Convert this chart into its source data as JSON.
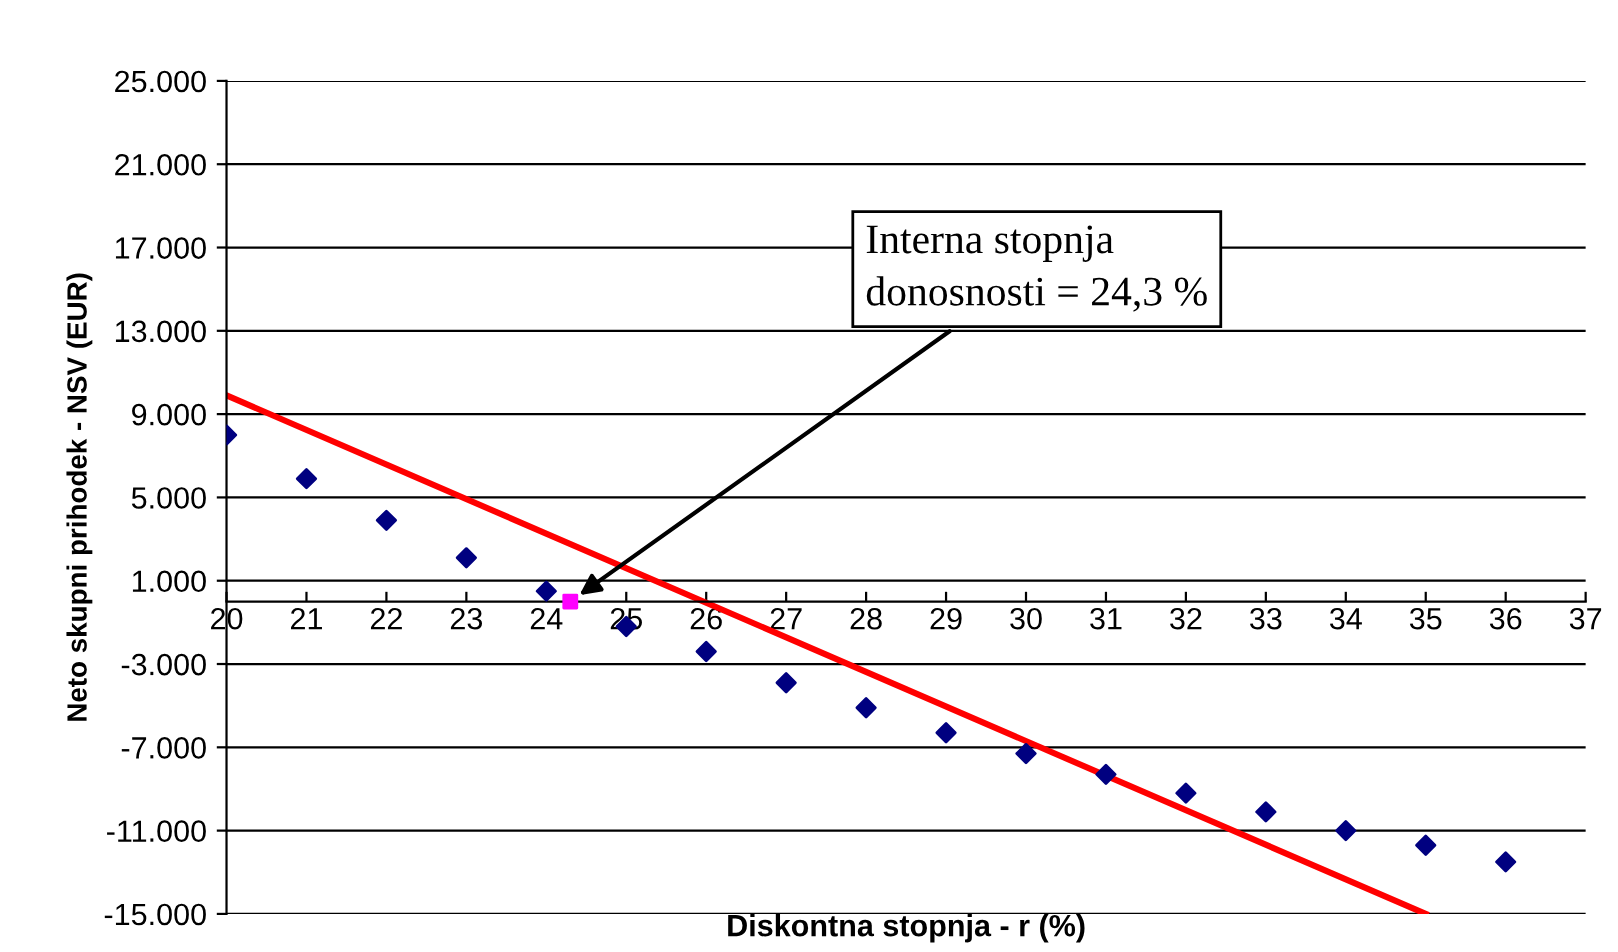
{
  "chart_data": {
    "type": "scatter",
    "xlabel": "Diskontna stopnja - r (%)",
    "ylabel": "Neto skupni prihodek - NSV (EUR)",
    "xlim": [
      20,
      37
    ],
    "xticks": [
      20,
      21,
      22,
      23,
      24,
      25,
      26,
      27,
      28,
      29,
      30,
      31,
      32,
      33,
      34,
      35,
      36,
      37
    ],
    "ylim": [
      -15000,
      25000
    ],
    "yticks": [
      {
        "value": 25000,
        "label": "25.000"
      },
      {
        "value": 21000,
        "label": "21.000"
      },
      {
        "value": 17000,
        "label": "17.000"
      },
      {
        "value": 13000,
        "label": "13.000"
      },
      {
        "value": 9000,
        "label": "9.000"
      },
      {
        "value": 5000,
        "label": "5.000"
      },
      {
        "value": 1000,
        "label": "1.000"
      },
      {
        "value": -3000,
        "label": "-3.000"
      },
      {
        "value": -7000,
        "label": "-7.000"
      },
      {
        "value": -11000,
        "label": "-11.000"
      },
      {
        "value": -15000,
        "label": "-15.000"
      }
    ],
    "grid": "y",
    "series": [
      {
        "color": "#000080",
        "marker": "diamond",
        "x": [
          20,
          21,
          22,
          23,
          24,
          25,
          26,
          27,
          28,
          29,
          30,
          31,
          32,
          33,
          34,
          35,
          36
        ],
        "values": [
          8000,
          5900,
          3900,
          2100,
          500,
          -1200,
          -2400,
          -3900,
          -5100,
          -6300,
          -7300,
          -8300,
          -9200,
          -10100,
          -11000,
          -11700,
          -12500
        ]
      },
      {
        "type": "scatter",
        "color": "#ff00ff",
        "marker": "square",
        "x": [
          24.3
        ],
        "values": [
          0
        ]
      },
      {
        "type": "line",
        "color": "#ff0000",
        "line_style": "solid",
        "x": [
          20,
          35
        ],
        "values": [
          9900,
          -15000
        ]
      }
    ],
    "annotations": [
      {
        "text": "Interna stopnja\ndonosnosti = 24,3 %",
        "x": 24.3,
        "y": 0
      }
    ]
  }
}
